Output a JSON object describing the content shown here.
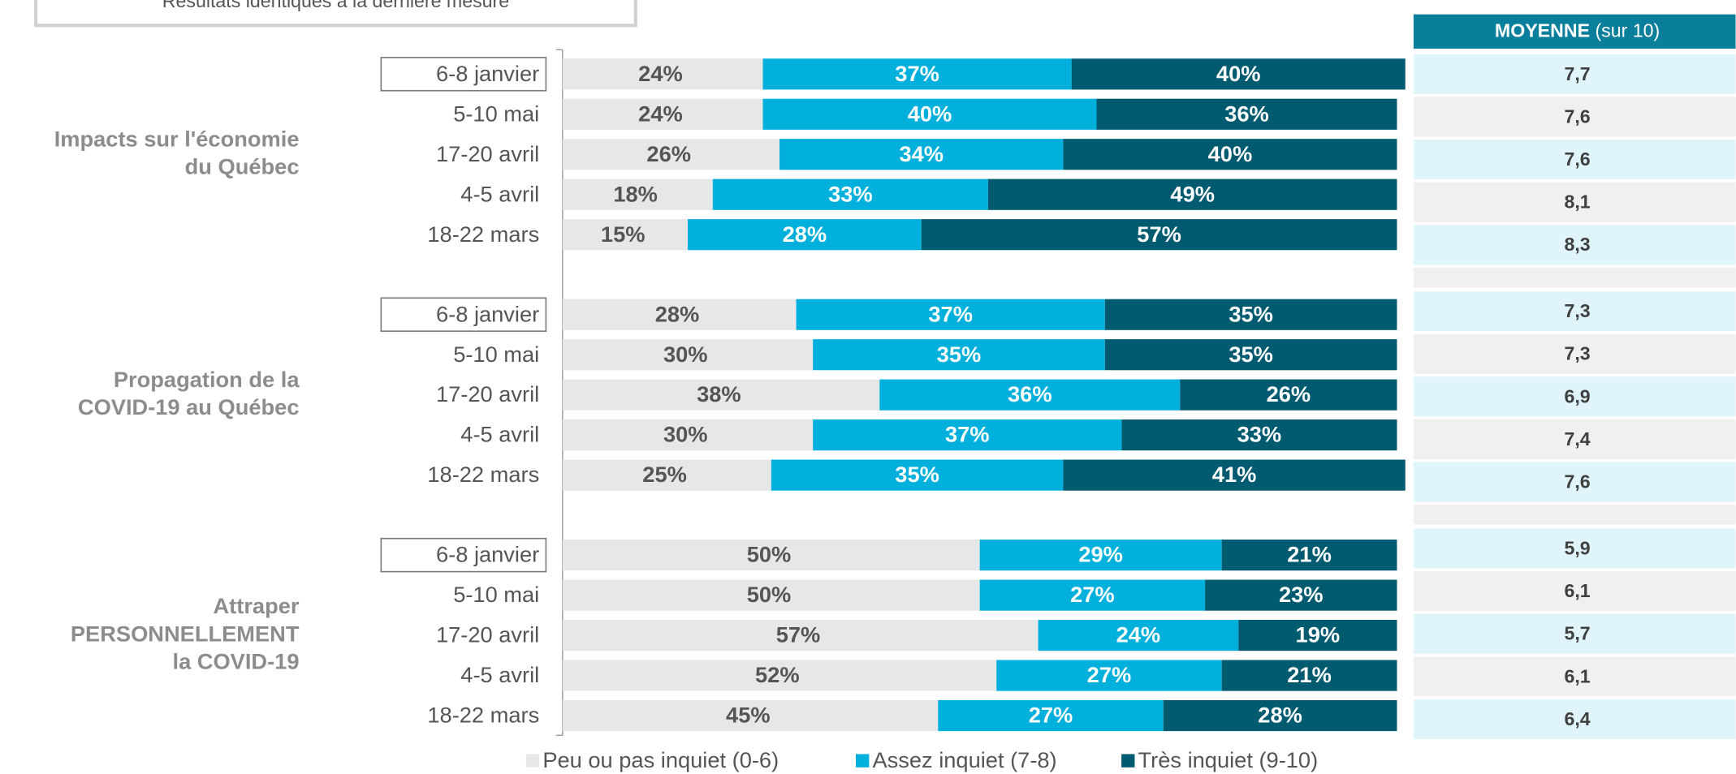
{
  "note": "Résultats identiques à la dernière mesure",
  "chart_data": {
    "type": "stacked-barh",
    "xlim": [
      0,
      100
    ],
    "groups": [
      {
        "label": [
          "Impacts sur l'économie",
          "du Québec"
        ]
      },
      {
        "label": [
          "Propagation de la",
          "COVID-19 au Québec"
        ]
      },
      {
        "label": [
          "Attraper",
          "PERSONNELLEMENT",
          "la COVID-19"
        ]
      }
    ],
    "categories": [
      "6-8 janvier",
      "5-10 mai",
      "17-20 avril",
      "4-5 avril",
      "18-22 mars",
      "6-8 janvier",
      "5-10 mai",
      "17-20 avril",
      "4-5 avril",
      "18-22 mars",
      "6-8 janvier",
      "5-10 mai",
      "17-20 avril",
      "4-5 avril",
      "18-22 mars"
    ],
    "series": [
      {
        "name": "Peu ou pas inquiet (0-6)",
        "color": "#e6e7e9",
        "label_color": "#555555",
        "values": [
          24,
          24,
          26,
          18,
          15,
          28,
          30,
          38,
          30,
          25,
          50,
          50,
          57,
          52,
          45
        ],
        "value_labels": [
          "24%",
          "24%",
          "26%",
          "18%",
          "15%",
          "28%",
          "30%",
          "38%",
          "30%",
          "25%",
          "50%",
          "50%",
          "57%",
          "52%",
          "45%"
        ]
      },
      {
        "name": "Assez inquiet (7-8)",
        "color": "#00b0dc",
        "label_color": "#ffffff",
        "values": [
          37,
          40,
          34,
          33,
          28,
          37,
          35,
          36,
          37,
          35,
          29,
          27,
          24,
          27,
          27
        ],
        "value_labels": [
          "37%",
          "40%",
          "34%",
          "33%",
          "28%",
          "37%",
          "35%",
          "36%",
          "37%",
          "35%",
          "29%",
          "27%",
          "24%",
          "27%",
          "27%"
        ]
      },
      {
        "name": "Très inquiet (9-10)",
        "color": "#005a70",
        "label_color": "#ffffff",
        "values": [
          40,
          36,
          40,
          49,
          57,
          35,
          35,
          26,
          33,
          41,
          21,
          23,
          19,
          21,
          28
        ],
        "value_labels": [
          "40%",
          "36%",
          "40%",
          "49%",
          "57%",
          "35%",
          "35%",
          "26%",
          "33%",
          "41%",
          "21%",
          "23%",
          "19%",
          "21%",
          "28%"
        ]
      }
    ],
    "mean": {
      "header": "MOYENNE",
      "header_unit": "(sur 10)",
      "values": [
        7.7,
        7.6,
        7.6,
        8.1,
        8.3,
        7.3,
        7.3,
        6.9,
        7.4,
        7.6,
        5.9,
        6.1,
        5.7,
        6.1,
        6.4
      ],
      "value_labels": [
        "7,7",
        "7,6",
        "7,6",
        "8,1",
        "8,3",
        "7,3",
        "7,3",
        "6,9",
        "7,4",
        "7,6",
        "5,9",
        "6,1",
        "5,7",
        "6,1",
        "6,4"
      ]
    }
  }
}
